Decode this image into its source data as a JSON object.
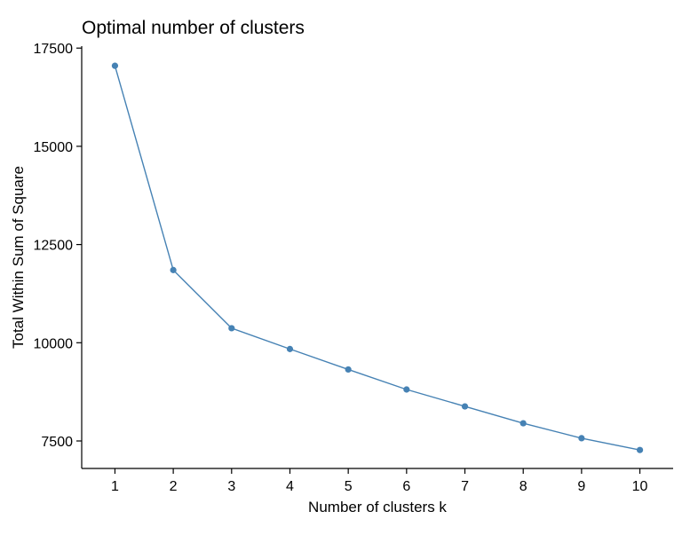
{
  "chart_data": {
    "type": "line",
    "title": "Optimal number of clusters",
    "xlabel": "Number of clusters k",
    "ylabel": "Total Within Sum of Square",
    "x": [
      1,
      2,
      3,
      4,
      5,
      6,
      7,
      8,
      9,
      10
    ],
    "x_tick_labels": [
      "1",
      "2",
      "3",
      "4",
      "5",
      "6",
      "7",
      "8",
      "9",
      "10"
    ],
    "series": [
      {
        "values": [
          17050,
          11850,
          10370,
          9840,
          9320,
          8810,
          8380,
          7950,
          7570,
          7270
        ]
      }
    ],
    "y_ticks": [
      7500,
      10000,
      12500,
      15000,
      17500
    ],
    "y_tick_labels": [
      "7500",
      "10000",
      "12500",
      "15000",
      "17500"
    ],
    "xlim": [
      0.43,
      10.57
    ],
    "ylim": [
      6800,
      17550
    ],
    "grid": false,
    "legend": "none",
    "line_color": "#4682B4",
    "point_color": "#4682B4"
  }
}
